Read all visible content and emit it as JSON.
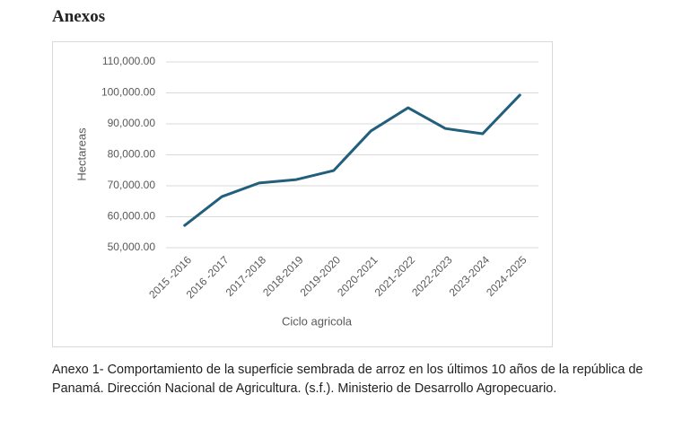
{
  "heading": "Anexos",
  "chart_data": {
    "type": "line",
    "x_label": "Ciclo agricola",
    "y_label": "Hectareas",
    "categories": [
      "2015 -2016",
      "2016 -2017",
      "2017-2018",
      "2018-2019",
      "2019-2020",
      "2020-2021",
      "2021-2022",
      "2022-2023",
      "2023-2024",
      "2024-2025"
    ],
    "values": [
      57200,
      66500,
      70900,
      72000,
      74900,
      87700,
      95200,
      88500,
      86800,
      99300
    ],
    "color": "#215f7d",
    "ylim": [
      50000,
      110000
    ],
    "yticks": [
      {
        "value": 50000,
        "label": "50,000.00"
      },
      {
        "value": 60000,
        "label": "60,000.00"
      },
      {
        "value": 70000,
        "label": "70,000.00"
      },
      {
        "value": 80000,
        "label": "80,000.00"
      },
      {
        "value": 90000,
        "label": "90,000.00"
      },
      {
        "value": 100000,
        "label": "100,000.00"
      },
      {
        "value": 110000,
        "label": "110,000.00"
      }
    ],
    "grid": true
  },
  "caption": "Anexo 1- Comportamiento de la superficie sembrada de arroz en los últimos 10 años de la república de Panamá. Dirección Nacional de Agricultura. (s.f.). Ministerio de Desarrollo Agropecuario."
}
